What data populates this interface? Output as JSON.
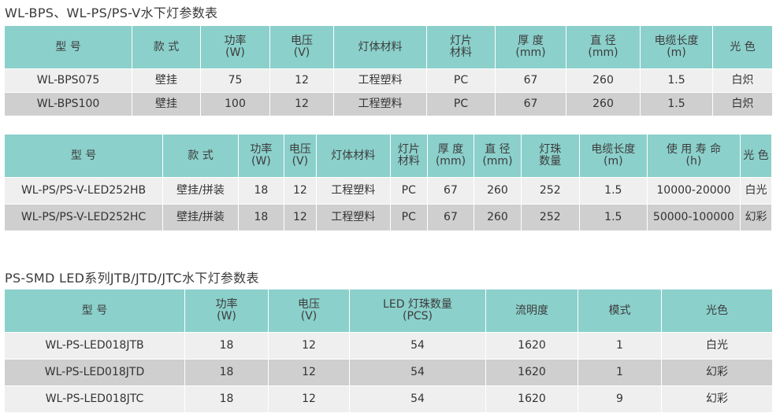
{
  "table1": {
    "title": "WL-BPS、WL-PS/PS-V水下灯参数表",
    "headers": [
      [
        "型 号"
      ],
      [
        "款 式"
      ],
      [
        "功率",
        "(W)"
      ],
      [
        "电压",
        "(V)"
      ],
      [
        "灯体材料"
      ],
      [
        "灯片",
        "材料"
      ],
      [
        "厚 度",
        "(mm)"
      ],
      [
        "直 径",
        "(mm)"
      ],
      [
        "电缆长度",
        "(m)"
      ],
      [
        "光 色"
      ]
    ],
    "rows": [
      [
        "WL-BPS075",
        "壁挂",
        "75",
        "12",
        "工程塑料",
        "PC",
        "67",
        "260",
        "1.5",
        "白炽"
      ],
      [
        "WL-BPS100",
        "壁挂",
        "100",
        "12",
        "工程塑料",
        "PC",
        "67",
        "260",
        "1.5",
        "白炽"
      ]
    ]
  },
  "table2": {
    "headers": [
      [
        "型 号"
      ],
      [
        "款 式"
      ],
      [
        "功率",
        "(W)"
      ],
      [
        "电压",
        "(V)"
      ],
      [
        "灯体材料"
      ],
      [
        "灯片",
        "材料"
      ],
      [
        "厚 度",
        "(mm)"
      ],
      [
        "直 径",
        "(mm)"
      ],
      [
        "灯珠",
        "数量"
      ],
      [
        "电缆长度",
        "(m)"
      ],
      [
        "使 用 寿 命",
        "(h)"
      ],
      [
        "光 色"
      ]
    ],
    "rows": [
      [
        "WL-PS/PS-V-LED252HB",
        "壁挂/拼装",
        "18",
        "12",
        "工程塑料",
        "PC",
        "67",
        "260",
        "252",
        "1.5",
        "10000-20000",
        "白光"
      ],
      [
        "WL-PS/PS-V-LED252HC",
        "壁挂/拼装",
        "18",
        "12",
        "工程塑料",
        "PC",
        "67",
        "260",
        "252",
        "1.5",
        "50000-100000",
        "幻彩"
      ]
    ]
  },
  "table3": {
    "title": "PS-SMD LED系列JTB/JTD/JTC水下灯参数表",
    "headers": [
      [
        "型 号"
      ],
      [
        "功率",
        "(W)"
      ],
      [
        "电压",
        "(V)"
      ],
      [
        "LED 灯珠数量",
        "(PCS)"
      ],
      [
        "流明度"
      ],
      [
        "模式"
      ],
      [
        "光色"
      ]
    ],
    "rows": [
      [
        "WL-PS-LED018JTB",
        "18",
        "12",
        "54",
        "1620",
        "1",
        "白光"
      ],
      [
        "WL-PS-LED018JTD",
        "18",
        "12",
        "54",
        "1620",
        "1",
        "幻彩"
      ],
      [
        "WL-PS-LED018JTC",
        "18",
        "12",
        "54",
        "1620",
        "9",
        "幻彩"
      ]
    ]
  }
}
